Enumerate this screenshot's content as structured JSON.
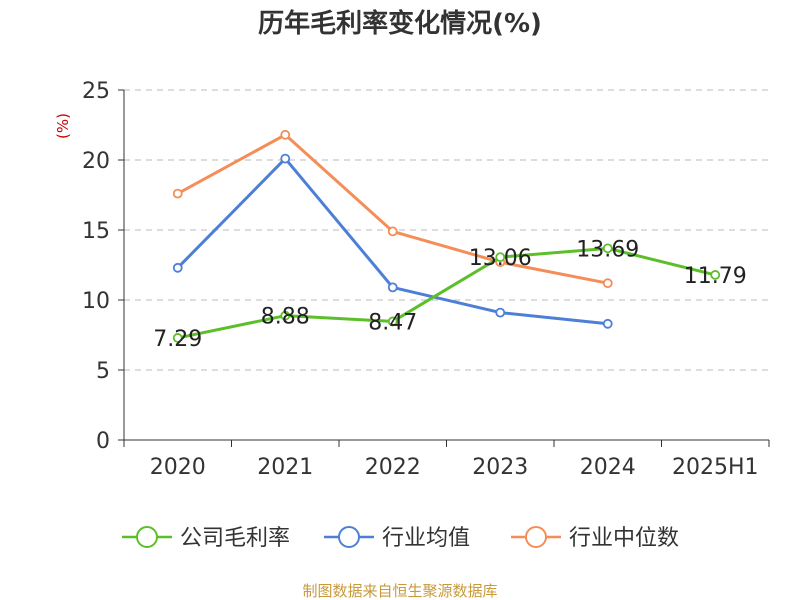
{
  "chart_data": {
    "type": "line",
    "title": "历年毛利率变化情况(%)",
    "ylabel": "(%)",
    "categories": [
      "2020",
      "2021",
      "2022",
      "2023",
      "2024",
      "2025H1"
    ],
    "ylim": [
      0,
      25
    ],
    "yticks": [
      0,
      5,
      10,
      15,
      20,
      25
    ],
    "grid": true,
    "legend_position": "bottom",
    "series": [
      {
        "name": "公司毛利率",
        "color": "#5cbf2a",
        "values": [
          7.29,
          8.88,
          8.47,
          13.06,
          13.69,
          11.79
        ],
        "data_labels": [
          "7.29",
          "8.88",
          "8.47",
          "13.06",
          "13.69",
          "11.79"
        ]
      },
      {
        "name": "行业均值",
        "color": "#4d7fd6",
        "values": [
          12.3,
          20.1,
          10.9,
          9.1,
          8.3,
          null
        ]
      },
      {
        "name": "行业中位数",
        "color": "#f58d58",
        "values": [
          17.6,
          21.8,
          14.9,
          12.7,
          11.2,
          null
        ]
      }
    ]
  },
  "source": "制图数据来自恒生聚源数据库",
  "colors": {
    "ylabel": "#cc0000",
    "source": "#c89a3c",
    "grid": "#bbbbbb",
    "axis": "#333333"
  }
}
